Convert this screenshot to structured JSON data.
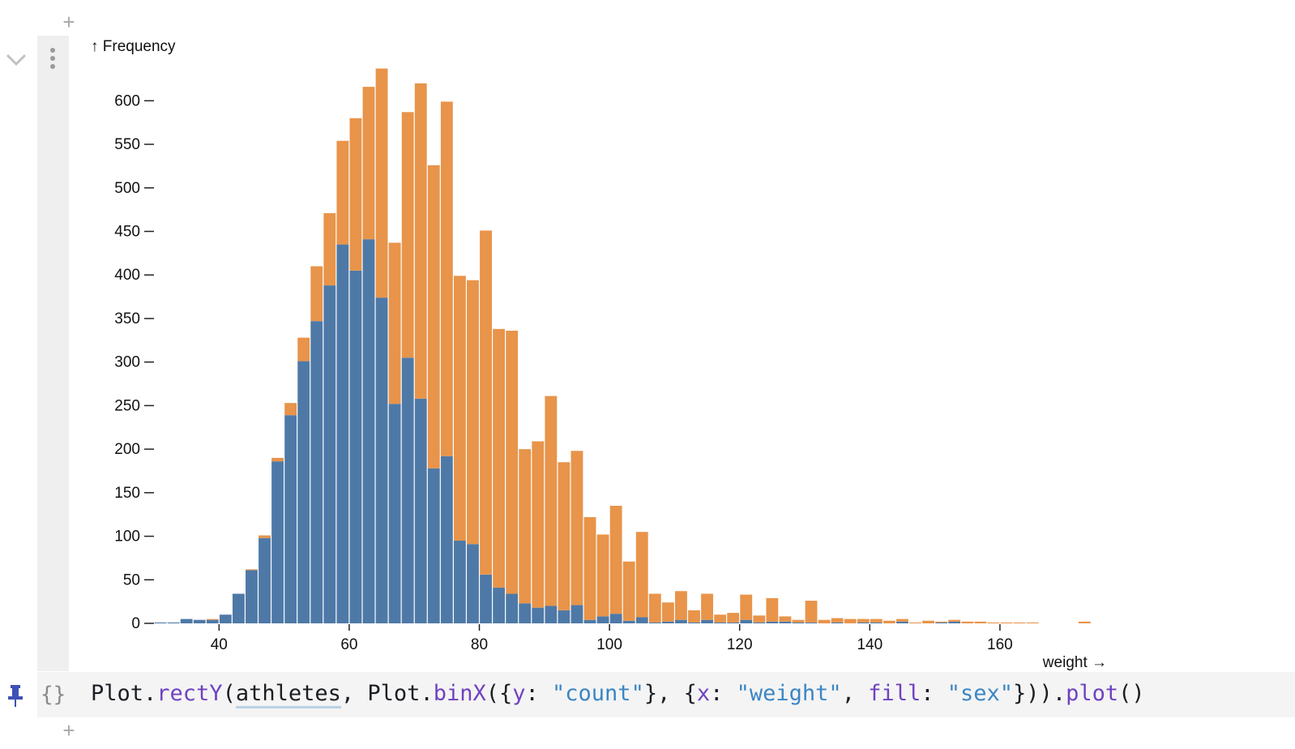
{
  "chart_data": {
    "type": "bar",
    "stacked": true,
    "ylabel": "↑ Frequency",
    "xlabel": "weight →",
    "x_ticks": [
      40,
      60,
      80,
      100,
      120,
      140,
      160
    ],
    "y_ticks": [
      0,
      50,
      100,
      150,
      200,
      250,
      300,
      350,
      400,
      450,
      500,
      550,
      600
    ],
    "xlim": [
      30,
      176
    ],
    "ylim": [
      0,
      640
    ],
    "bin_width": 2,
    "series": [
      {
        "color": "#4e79a7",
        "bins": [
          [
            30,
            1
          ],
          [
            32,
            1
          ],
          [
            34,
            5
          ],
          [
            36,
            4
          ],
          [
            38,
            4
          ],
          [
            40,
            10
          ],
          [
            42,
            34
          ],
          [
            44,
            61
          ],
          [
            46,
            98
          ],
          [
            48,
            186
          ],
          [
            50,
            239
          ],
          [
            52,
            301
          ],
          [
            54,
            347
          ],
          [
            56,
            388
          ],
          [
            58,
            435
          ],
          [
            60,
            405
          ],
          [
            62,
            441
          ],
          [
            64,
            374
          ],
          [
            66,
            252
          ],
          [
            68,
            305
          ],
          [
            70,
            258
          ],
          [
            72,
            178
          ],
          [
            74,
            192
          ],
          [
            76,
            95
          ],
          [
            78,
            91
          ],
          [
            80,
            56
          ],
          [
            82,
            41
          ],
          [
            84,
            34
          ],
          [
            86,
            23
          ],
          [
            88,
            18
          ],
          [
            90,
            20
          ],
          [
            92,
            15
          ],
          [
            94,
            21
          ],
          [
            96,
            4
          ],
          [
            98,
            8
          ],
          [
            100,
            11
          ],
          [
            102,
            3
          ],
          [
            104,
            7
          ],
          [
            106,
            1
          ],
          [
            108,
            2
          ],
          [
            110,
            4
          ],
          [
            112,
            1
          ],
          [
            114,
            4
          ],
          [
            116,
            1
          ],
          [
            118,
            1
          ],
          [
            120,
            4
          ],
          [
            122,
            1
          ],
          [
            124,
            2
          ],
          [
            126,
            2
          ],
          [
            128,
            1
          ],
          [
            130,
            1
          ],
          [
            132,
            0
          ],
          [
            134,
            1
          ],
          [
            136,
            0
          ],
          [
            138,
            1
          ],
          [
            140,
            1
          ],
          [
            142,
            0
          ],
          [
            144,
            2
          ],
          [
            146,
            0
          ],
          [
            148,
            0
          ],
          [
            150,
            1
          ],
          [
            152,
            2
          ],
          [
            154,
            0
          ],
          [
            156,
            0
          ],
          [
            158,
            0
          ],
          [
            160,
            0
          ],
          [
            162,
            0
          ],
          [
            164,
            0
          ],
          [
            166,
            0
          ],
          [
            168,
            0
          ],
          [
            170,
            0
          ],
          [
            172,
            0
          ]
        ]
      },
      {
        "color": "#e8944a",
        "bins": [
          [
            30,
            0
          ],
          [
            32,
            0
          ],
          [
            34,
            0
          ],
          [
            36,
            0
          ],
          [
            38,
            1
          ],
          [
            40,
            0
          ],
          [
            42,
            0
          ],
          [
            44,
            1
          ],
          [
            46,
            3
          ],
          [
            48,
            4
          ],
          [
            50,
            14
          ],
          [
            52,
            27
          ],
          [
            54,
            63
          ],
          [
            56,
            83
          ],
          [
            58,
            119
          ],
          [
            60,
            175
          ],
          [
            62,
            175
          ],
          [
            64,
            263
          ],
          [
            66,
            185
          ],
          [
            68,
            282
          ],
          [
            70,
            362
          ],
          [
            72,
            348
          ],
          [
            74,
            407
          ],
          [
            76,
            304
          ],
          [
            78,
            303
          ],
          [
            80,
            395
          ],
          [
            82,
            297
          ],
          [
            84,
            302
          ],
          [
            86,
            177
          ],
          [
            88,
            191
          ],
          [
            90,
            241
          ],
          [
            92,
            170
          ],
          [
            94,
            177
          ],
          [
            96,
            118
          ],
          [
            98,
            94
          ],
          [
            100,
            124
          ],
          [
            102,
            68
          ],
          [
            104,
            98
          ],
          [
            106,
            33
          ],
          [
            108,
            22
          ],
          [
            110,
            33
          ],
          [
            112,
            14
          ],
          [
            114,
            30
          ],
          [
            116,
            9
          ],
          [
            118,
            11
          ],
          [
            120,
            29
          ],
          [
            122,
            8
          ],
          [
            124,
            27
          ],
          [
            126,
            6
          ],
          [
            128,
            3
          ],
          [
            130,
            25
          ],
          [
            132,
            4
          ],
          [
            134,
            5
          ],
          [
            136,
            5
          ],
          [
            138,
            4
          ],
          [
            140,
            4
          ],
          [
            142,
            3
          ],
          [
            144,
            3
          ],
          [
            146,
            1
          ],
          [
            148,
            3
          ],
          [
            150,
            1
          ],
          [
            152,
            2
          ],
          [
            154,
            2
          ],
          [
            156,
            2
          ],
          [
            158,
            1
          ],
          [
            160,
            1
          ],
          [
            162,
            1
          ],
          [
            164,
            1
          ],
          [
            166,
            0
          ],
          [
            168,
            0
          ],
          [
            170,
            0
          ],
          [
            172,
            2
          ]
        ]
      }
    ]
  },
  "code": {
    "obj1": "Plot",
    "dot1": ".",
    "fn1": "rectY",
    "p1": "(",
    "var1": "athletes",
    "p2": ", ",
    "obj2": "Plot",
    "dot2": ".",
    "fn2": "binX",
    "p3": "({",
    "key1": "y",
    "p4": ": ",
    "str1": "\"count\"",
    "p5": "}, {",
    "key2": "x",
    "p6": ": ",
    "str2": "\"weight\"",
    "p7": ", ",
    "key3": "fill",
    "p8": ": ",
    "str3": "\"sex\"",
    "p9": "}))",
    "dot3": ".",
    "fn3": "plot",
    "p10": "()"
  },
  "icons": {
    "add_cell": "plus-icon",
    "collapse": "chevron-down-icon",
    "menu": "vertical-dots-icon",
    "pin": "pin-icon",
    "cell_type": "braces-icon"
  },
  "colors": {
    "male": "#4e79a7",
    "female": "#e8944a",
    "gutter": "#efefef",
    "code_bg": "#f4f4f4",
    "pin": "#3f51b5"
  }
}
